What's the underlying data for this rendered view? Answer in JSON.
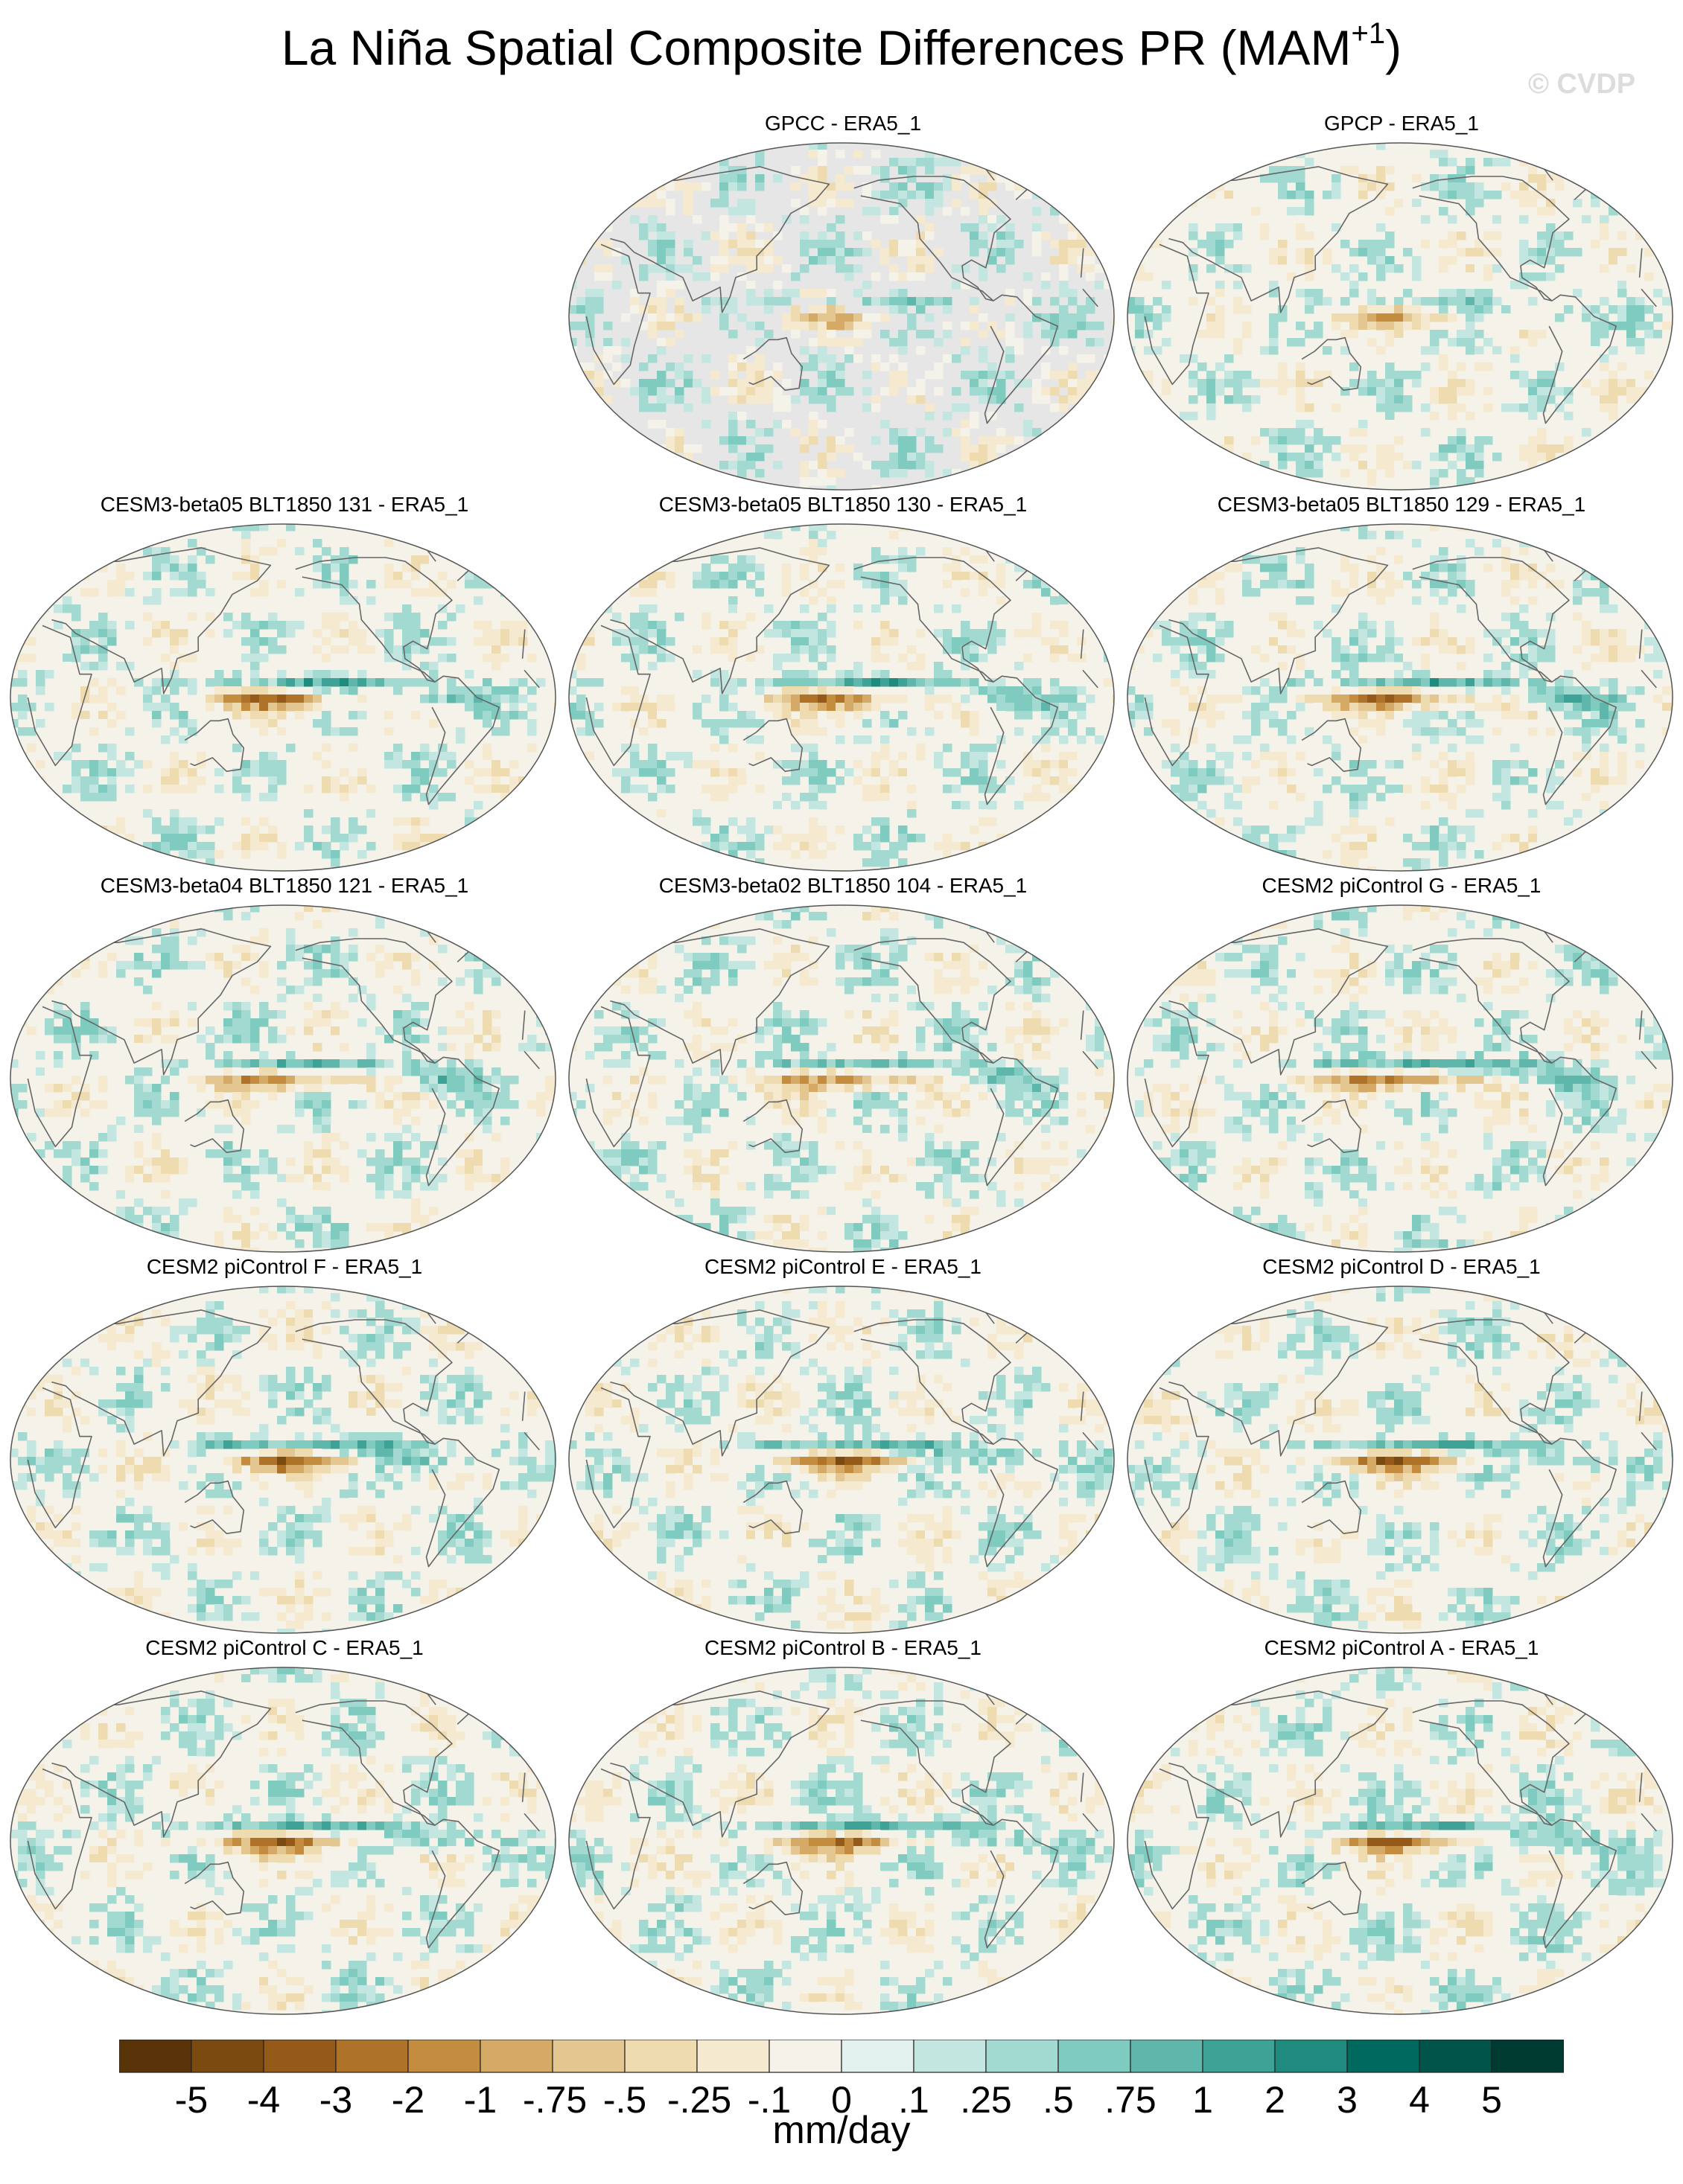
{
  "figure": {
    "title": "La Niña Spatial Composite Differences PR (MAM",
    "title_sup": "+1",
    "title_close": ")",
    "watermark": "© CVDP"
  },
  "panels": [
    {
      "title": "GPCC - ERA5_1",
      "land_only": true,
      "strength": 0.5
    },
    {
      "title": "GPCP - ERA5_1",
      "land_only": false,
      "strength": 0.6
    },
    {
      "title": "CESM3-beta05 BLT1850 131 - ERA5_1",
      "land_only": false,
      "strength": 1.0
    },
    {
      "title": "CESM3-beta05 BLT1850 130 - ERA5_1",
      "land_only": false,
      "strength": 1.0
    },
    {
      "title": "CESM3-beta05 BLT1850 129 - ERA5_1",
      "land_only": false,
      "strength": 1.0
    },
    {
      "title": "CESM3-beta04 BLT1850 121 - ERA5_1",
      "land_only": false,
      "strength": 0.9
    },
    {
      "title": "CESM3-beta02 BLT1850 104 - ERA5_1",
      "land_only": false,
      "strength": 0.9
    },
    {
      "title": "CESM2 piControl G - ERA5_1",
      "land_only": false,
      "strength": 1.0
    },
    {
      "title": "CESM2 piControl F - ERA5_1",
      "land_only": false,
      "strength": 1.0
    },
    {
      "title": "CESM2 piControl E - ERA5_1",
      "land_only": false,
      "strength": 1.0
    },
    {
      "title": "CESM2 piControl D - ERA5_1",
      "land_only": false,
      "strength": 1.0
    },
    {
      "title": "CESM2 piControl C - ERA5_1",
      "land_only": false,
      "strength": 1.0
    },
    {
      "title": "CESM2 piControl B - ERA5_1",
      "land_only": false,
      "strength": 1.0
    },
    {
      "title": "CESM2 piControl A - ERA5_1",
      "land_only": false,
      "strength": 1.0
    }
  ],
  "colorbar": {
    "colors": [
      "#5a3409",
      "#7a4a10",
      "#95591a",
      "#ae7228",
      "#c48c3f",
      "#d4aa66",
      "#e3c690",
      "#efdbb0",
      "#f5ead0",
      "#f5f2ea",
      "#e3f1ef",
      "#c3e6e1",
      "#a2d9d1",
      "#80cbc0",
      "#5fb7ab",
      "#3ea296",
      "#1e8b7e",
      "#00695e",
      "#005449",
      "#003b32"
    ],
    "labels": [
      "-5",
      "-4",
      "-3",
      "-2",
      "-1",
      "-.75",
      "-.5",
      "-.25",
      "-.1",
      "0",
      ".1",
      ".25",
      ".5",
      ".75",
      "1",
      "2",
      "3",
      "4",
      "5"
    ],
    "units": "mm/day"
  }
}
